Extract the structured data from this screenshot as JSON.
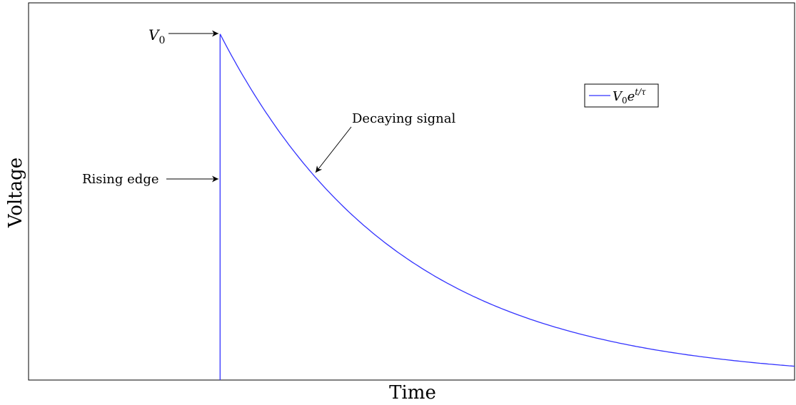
{
  "chart_data": {
    "type": "line",
    "title": "",
    "xlabel": "Time",
    "ylabel": "Voltage",
    "xlim": [
      0,
      10
    ],
    "ylim": [
      0,
      1.09
    ],
    "grid": false,
    "legend_position": "top-right",
    "series": [
      {
        "name": "V0e^{t/τ}",
        "color": "#3333ff",
        "x": [
          2.5,
          2.5,
          2.5,
          3.0,
          3.5,
          4.0,
          4.5,
          5.0,
          5.5,
          6.0,
          6.5,
          7.0,
          7.5,
          8.0,
          8.5,
          9.0,
          9.5,
          10.0
        ],
        "y": [
          0.0,
          0.5,
          1.0,
          0.78,
          0.61,
          0.48,
          0.38,
          0.3,
          0.24,
          0.19,
          0.155,
          0.125,
          0.1,
          0.085,
          0.07,
          0.058,
          0.048,
          0.04
        ]
      }
    ],
    "legend": {
      "entries": [
        {
          "base": "V",
          "sub": "0",
          "mid": "e",
          "sup": "t/τ"
        }
      ]
    },
    "annotations": [
      {
        "text": "V",
        "sub": "0",
        "math": true
      },
      {
        "text": "Rising edge",
        "math": false
      },
      {
        "text": "Decaying signal",
        "math": false
      }
    ]
  }
}
